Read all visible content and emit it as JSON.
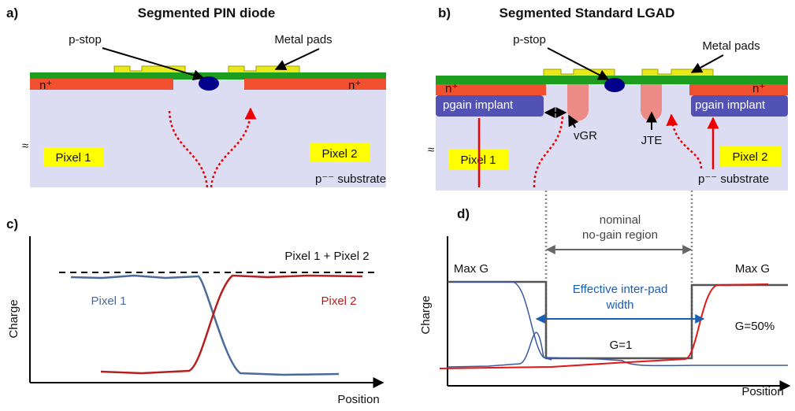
{
  "panel_a": {
    "label": "a)",
    "title": "Segmented PIN diode",
    "p_stop": "p-stop",
    "metal_pads": "Metal pads",
    "n_left": "n⁺",
    "n_right": "n⁺",
    "pixel_1": "Pixel 1",
    "pixel_2": "Pixel 2",
    "substrate": "p⁻⁻ substrate"
  },
  "panel_b": {
    "label": "b)",
    "title": "Segmented Standard LGAD",
    "p_stop": "p-stop",
    "metal_pads": "Metal pads",
    "n_left": "n⁺",
    "n_right": "n⁺",
    "gain_left": "pgain implant",
    "gain_right": "pgain implant",
    "vgr": "vGR",
    "jte": "JTE",
    "pixel_1": "Pixel 1",
    "pixel_2": "Pixel 2",
    "substrate": "p⁻⁻ substrate"
  },
  "panel_c": {
    "label": "c)",
    "sum_label": "Pixel 1 + Pixel 2",
    "y_label": "Charge",
    "pixel_1": "Pixel 1",
    "pixel_2": "Pixel 2",
    "x_label": "Position"
  },
  "panel_d": {
    "label": "d)",
    "region_line1": "nominal",
    "region_line2": "no-gain region",
    "max_g_left": "Max G",
    "max_g_right": "Max G",
    "width_line1": "Effective inter-pad",
    "width_line2": "width",
    "g_half": "G=50%",
    "g_one": "G=1",
    "y_label": "Charge",
    "x_label": "Position"
  }
}
